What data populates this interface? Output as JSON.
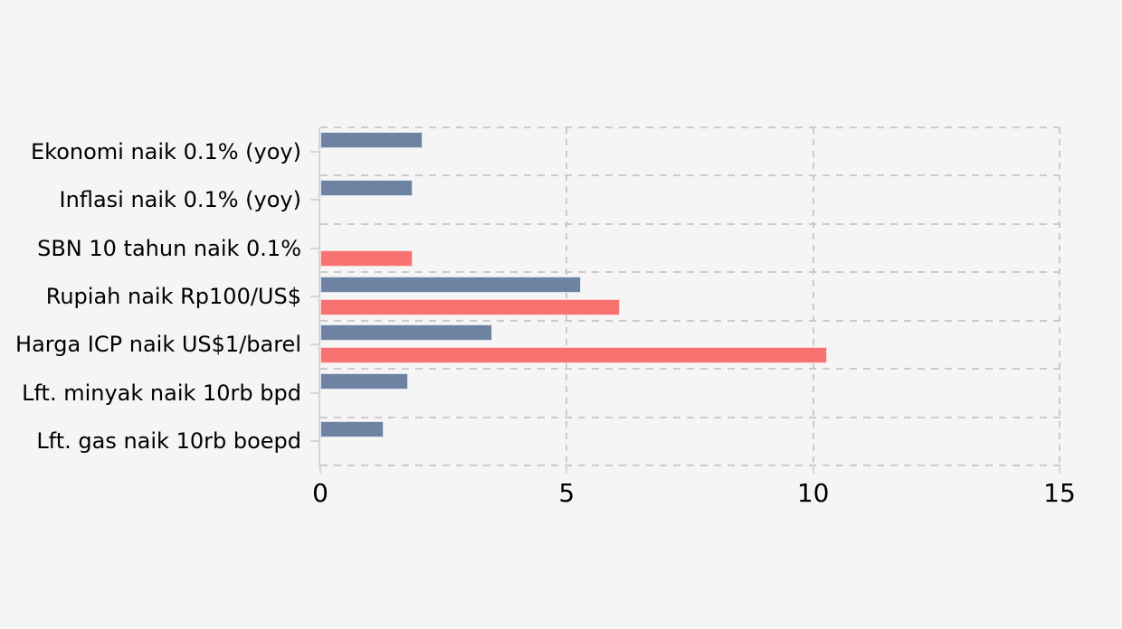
{
  "chart_data": {
    "type": "bar",
    "orientation": "horizontal",
    "categories": [
      "Ekonomi naik 0.1% (yoy)",
      "Inflasi naik 0.1% (yoy)",
      "SBN 10 tahun naik 0.1%",
      "Rupiah naik Rp100/US$",
      "Harga ICP naik US$1/barel",
      "Lft. minyak naik 10rb bpd",
      "Lft. gas naik 10rb boepd"
    ],
    "series": [
      {
        "name": "series_1_blue",
        "color": "#6e83a2",
        "values": [
          2.1,
          1.9,
          0,
          5.3,
          3.5,
          1.8,
          1.3
        ]
      },
      {
        "name": "series_2_red",
        "color": "#f87272",
        "values": [
          0,
          0,
          1.9,
          6.1,
          10.3,
          0,
          0
        ]
      }
    ],
    "xlim": [
      0,
      15
    ],
    "xticks": [
      "0",
      "5",
      "10",
      "15"
    ],
    "grid": "dashed",
    "legend": "none",
    "background": "#f5f5f5"
  }
}
